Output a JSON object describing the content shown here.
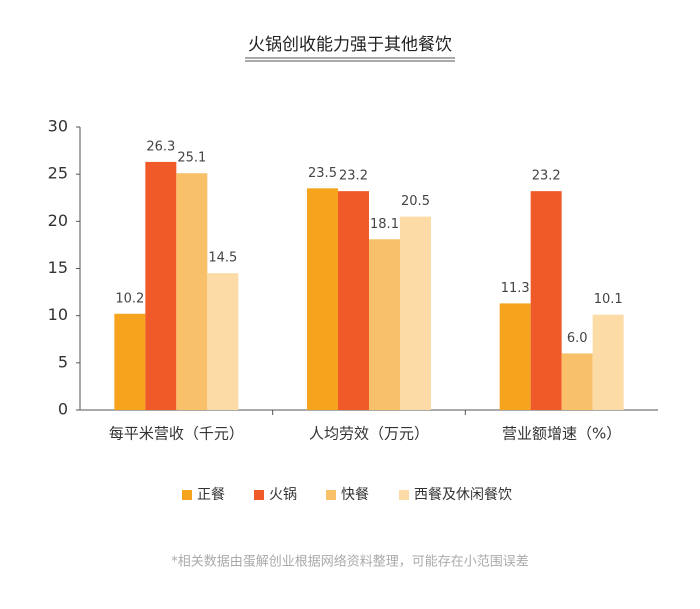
{
  "chart_data": {
    "type": "bar",
    "title": "火锅创收能力强于其他餐饮",
    "categories": [
      "每平米营收（千元）",
      "人均劳效（万元）",
      "营业额增速（%）"
    ],
    "series": [
      {
        "name": "正餐",
        "color": "#f6a41e",
        "values": [
          10.2,
          23.5,
          11.3
        ],
        "value_labels": [
          "10.2",
          "23.5",
          "11.3"
        ]
      },
      {
        "name": "火锅",
        "color": "#f05a28",
        "values": [
          26.3,
          23.2,
          23.2
        ],
        "value_labels": [
          "26.3",
          "23.2",
          "23.2"
        ]
      },
      {
        "name": "快餐",
        "color": "#f8c068",
        "values": [
          25.1,
          18.1,
          6
        ],
        "value_labels": [
          "25.1",
          "18.1",
          "6.0"
        ]
      },
      {
        "name": "西餐及休闲餐饮",
        "color": "#fcdba6",
        "values": [
          14.5,
          20.5,
          10.1
        ],
        "value_labels": [
          "14.5",
          "20.5",
          "10.1"
        ]
      }
    ],
    "ylim": [
      0,
      30
    ],
    "yticks": [
      0,
      5,
      10,
      15,
      20,
      25,
      30
    ],
    "note": "*相关数据由蛋解创业根据网络资料整理，可能存在小范围误差"
  }
}
